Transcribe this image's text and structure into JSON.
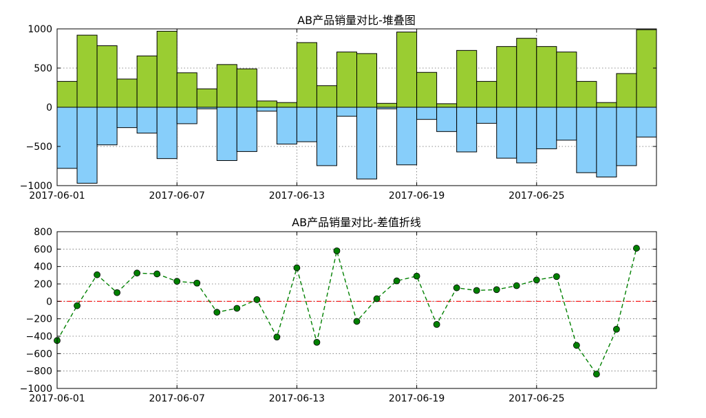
{
  "chart_data": [
    {
      "type": "bar",
      "title": "AB产品销量对比-堆叠图",
      "x": [
        "2017-06-01",
        "2017-06-02",
        "2017-06-03",
        "2017-06-04",
        "2017-06-05",
        "2017-06-06",
        "2017-06-07",
        "2017-06-08",
        "2017-06-09",
        "2017-06-10",
        "2017-06-11",
        "2017-06-12",
        "2017-06-13",
        "2017-06-14",
        "2017-06-15",
        "2017-06-16",
        "2017-06-17",
        "2017-06-18",
        "2017-06-19",
        "2017-06-20",
        "2017-06-21",
        "2017-06-22",
        "2017-06-23",
        "2017-06-24",
        "2017-06-25",
        "2017-06-26",
        "2017-06-27",
        "2017-06-28",
        "2017-06-29",
        "2017-06-30"
      ],
      "xtick_labels": [
        "2017-06-01",
        "2017-06-07",
        "2017-06-13",
        "2017-06-19",
        "2017-06-25"
      ],
      "ylim": [
        -1000,
        1000
      ],
      "ytick_labels": [
        "1000",
        "500",
        "0",
        "−500",
        "−1000"
      ],
      "ytick_values": [
        1000,
        500,
        0,
        -500,
        -1000
      ],
      "grid": true,
      "series": [
        {
          "color": "#9acd32",
          "values": [
            330,
            920,
            785,
            360,
            655,
            970,
            440,
            235,
            545,
            490,
            80,
            60,
            825,
            275,
            705,
            685,
            50,
            960,
            445,
            45,
            725,
            330,
            775,
            880,
            775,
            705,
            330,
            60,
            430,
            990
          ]
        },
        {
          "color": "#87cefa",
          "values": [
            -780,
            -970,
            -480,
            -260,
            -330,
            -655,
            -210,
            -20,
            -680,
            -565,
            -50,
            -470,
            -440,
            -745,
            -115,
            -915,
            -20,
            -735,
            -155,
            -310,
            -570,
            -205,
            -650,
            -710,
            -530,
            -420,
            -835,
            -890,
            -745,
            -380
          ]
        }
      ]
    },
    {
      "type": "line",
      "title": "AB产品销量对比-差值折线",
      "x": [
        "2017-06-01",
        "2017-06-02",
        "2017-06-03",
        "2017-06-04",
        "2017-06-05",
        "2017-06-06",
        "2017-06-07",
        "2017-06-08",
        "2017-06-09",
        "2017-06-10",
        "2017-06-11",
        "2017-06-12",
        "2017-06-13",
        "2017-06-14",
        "2017-06-15",
        "2017-06-16",
        "2017-06-17",
        "2017-06-18",
        "2017-06-19",
        "2017-06-20",
        "2017-06-21",
        "2017-06-22",
        "2017-06-23",
        "2017-06-24",
        "2017-06-25",
        "2017-06-26",
        "2017-06-27",
        "2017-06-28",
        "2017-06-29",
        "2017-06-30"
      ],
      "xtick_labels": [
        "2017-06-01",
        "2017-06-07",
        "2017-06-13",
        "2017-06-19",
        "2017-06-25"
      ],
      "ylim": [
        -1000,
        800
      ],
      "ytick_labels": [
        "800",
        "600",
        "400",
        "200",
        "0",
        "−200",
        "−400",
        "−600",
        "−800",
        "−1000"
      ],
      "ytick_values": [
        800,
        600,
        400,
        200,
        0,
        -200,
        -400,
        -600,
        -800,
        -1000
      ],
      "grid": true,
      "reference_line": {
        "y": 0,
        "color": "#ff0000"
      },
      "series": [
        {
          "color": "#008000",
          "values": [
            -450,
            -50,
            305,
            100,
            325,
            315,
            230,
            210,
            -125,
            -80,
            20,
            -410,
            385,
            -470,
            580,
            -230,
            30,
            235,
            290,
            -265,
            155,
            125,
            135,
            180,
            245,
            285,
            -505,
            -835,
            -320,
            610
          ]
        }
      ]
    }
  ]
}
